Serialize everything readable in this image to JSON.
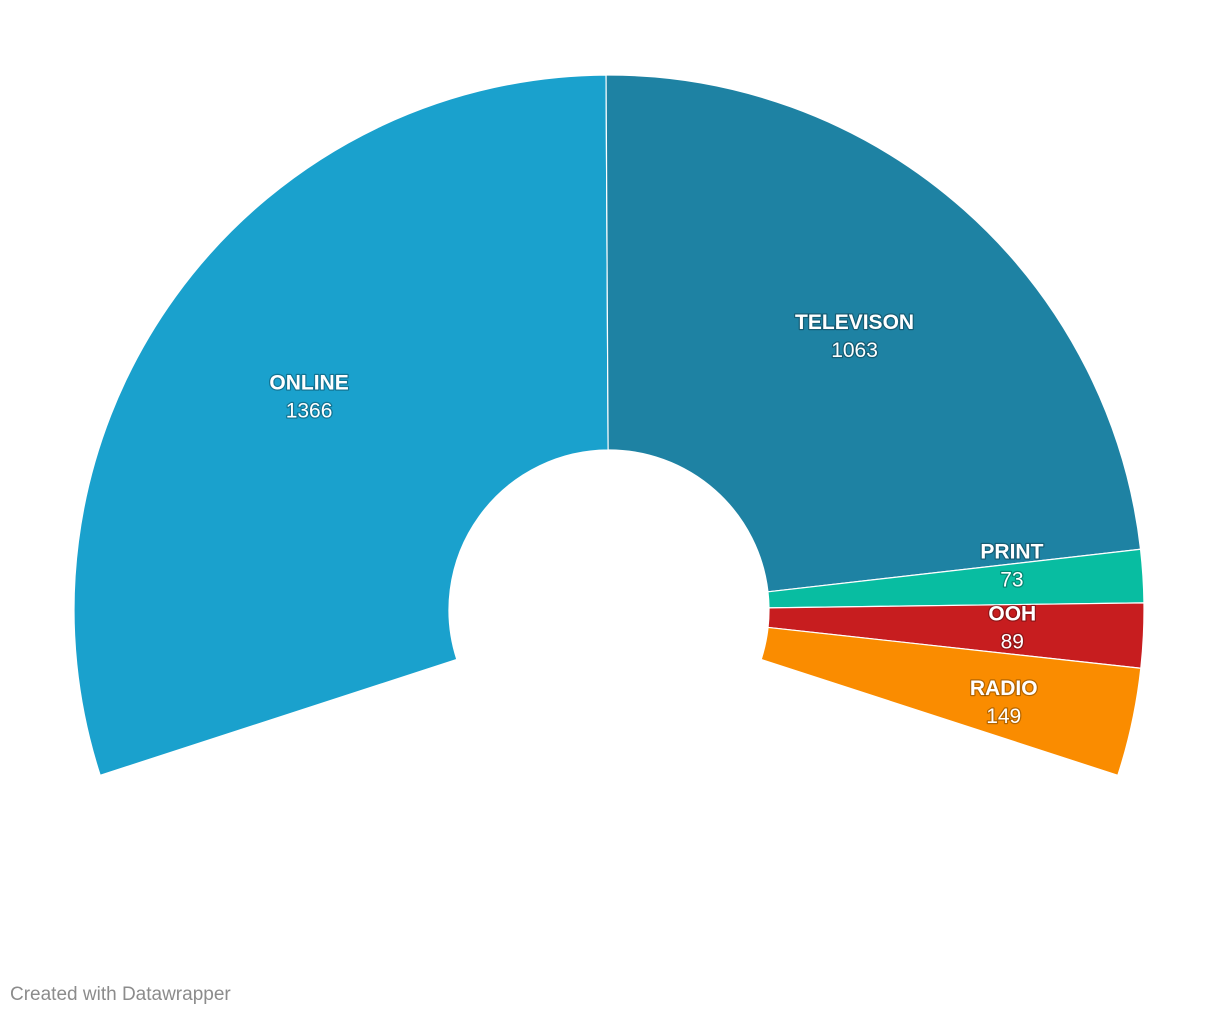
{
  "chart_data": {
    "type": "pie",
    "subtype": "semi-donut",
    "title": "",
    "categories": [
      "ONLINE",
      "TELEVISON",
      "PRINT",
      "OOH",
      "RADIO"
    ],
    "values": [
      1366,
      1063,
      73,
      89,
      149
    ],
    "colors": [
      "#1aa1cd",
      "#1e82a3",
      "#08bda1",
      "#c71d1f",
      "#fa8c00"
    ]
  },
  "footer": {
    "credit": "Created with Datawrapper"
  }
}
